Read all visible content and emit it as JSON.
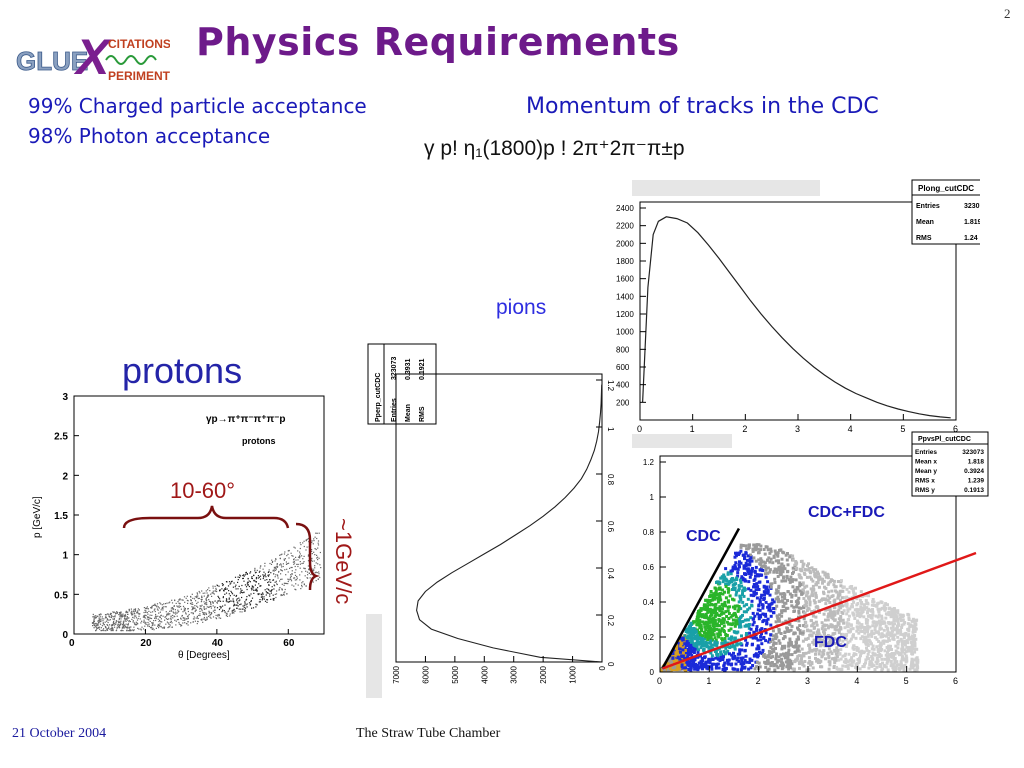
{
  "slide": {
    "title": "Physics Requirements",
    "page_number": "2",
    "logo": {
      "text_top": "CITATIONS",
      "text_left": "GLUE",
      "text_bottom": "PERIMENT",
      "letter": "X"
    },
    "bullets": [
      "99% Charged particle acceptance",
      "98% Photon acceptance"
    ],
    "momentum_heading": "Momentum of tracks in the CDC",
    "reaction": "γ p! η₁(1800)p ! 2π⁺2π⁻π±p",
    "pions_label": "pions",
    "protons_label": "protons",
    "angle_label": "10-60°",
    "momentum_label": "~1GeV/c",
    "footer_date": "21 October 2004",
    "footer_title": "The Straw Tube Chamber"
  },
  "chart_data": [
    {
      "type": "line",
      "name": "Plong_cutCDC",
      "stats": [
        [
          "Entries",
          "323073"
        ],
        [
          "Mean",
          "1.819"
        ],
        [
          "RMS",
          "1.24"
        ]
      ],
      "xlim": [
        0,
        6
      ],
      "ylim": [
        0,
        2400
      ],
      "x_ticks": [
        "0",
        "1",
        "2",
        "3",
        "4",
        "5",
        "6"
      ],
      "y_ticks": [
        "200",
        "400",
        "600",
        "800",
        "1000",
        "1200",
        "1400",
        "1600",
        "1800",
        "2000",
        "2200",
        "2400"
      ],
      "x": [
        0.05,
        0.15,
        0.25,
        0.35,
        0.5,
        0.7,
        0.9,
        1.1,
        1.3,
        1.5,
        1.7,
        1.9,
        2.1,
        2.3,
        2.5,
        2.7,
        2.9,
        3.1,
        3.3,
        3.5,
        3.7,
        3.9,
        4.1,
        4.3,
        4.5,
        4.7,
        4.9,
        5.1,
        5.3,
        5.5,
        5.7,
        5.9
      ],
      "y": [
        200,
        1500,
        2100,
        2250,
        2300,
        2280,
        2230,
        2120,
        1980,
        1830,
        1670,
        1510,
        1350,
        1200,
        1060,
        930,
        810,
        700,
        600,
        510,
        430,
        360,
        300,
        250,
        200,
        160,
        125,
        95,
        70,
        50,
        35,
        25
      ]
    },
    {
      "type": "line",
      "name": "Pperp_cutCDC",
      "stats": [
        [
          "Entries",
          "323073"
        ],
        [
          "Mean",
          "0.3931"
        ],
        [
          "RMS",
          "0.1921"
        ]
      ],
      "orientation": "rotated",
      "p_ticks": [
        "0",
        "0.2",
        "0.4",
        "0.6",
        "0.8",
        "1",
        "1.2"
      ],
      "count_ticks": [
        "7000",
        "6000",
        "5000",
        "4000",
        "3000",
        "2000",
        "1000",
        "0"
      ],
      "p": [
        0.02,
        0.06,
        0.1,
        0.14,
        0.18,
        0.22,
        0.26,
        0.3,
        0.34,
        0.38,
        0.42,
        0.46,
        0.5,
        0.54,
        0.58,
        0.62,
        0.66,
        0.7,
        0.74,
        0.78,
        0.82,
        0.86,
        0.9,
        0.94,
        0.98,
        1.02,
        1.06,
        1.1,
        1.14,
        1.18
      ],
      "counts": [
        2100,
        3700,
        4900,
        5800,
        6200,
        6300,
        6250,
        6000,
        5600,
        5100,
        4550,
        4000,
        3450,
        2950,
        2450,
        2000,
        1600,
        1250,
        950,
        700,
        520,
        380,
        260,
        180,
        120,
        80,
        50,
        30,
        20,
        10
      ]
    },
    {
      "type": "scatter",
      "name": "protons",
      "title": "γp→π⁺π⁻π⁺π⁻p",
      "subtitle": "protons",
      "xlabel": "θ [Degrees]",
      "ylabel": "p [GeV/c]",
      "xlim": [
        0,
        70
      ],
      "ylim": [
        0,
        3
      ],
      "x_ticks": [
        "0",
        "20",
        "40",
        "60"
      ],
      "y_ticks": [
        "0",
        "0.5",
        "1",
        "1.5",
        "2",
        "2.5",
        "3"
      ]
    },
    {
      "type": "heatmap",
      "name": "PpvsPl_cutCDC",
      "stats": [
        [
          "Entries",
          "323073"
        ],
        [
          "Mean x",
          "1.818"
        ],
        [
          "Mean y",
          "0.3924"
        ],
        [
          "RMS x",
          "1.239"
        ],
        [
          "RMS y",
          "0.1913"
        ]
      ],
      "xlim": [
        0,
        6
      ],
      "ylim": [
        0,
        1.2
      ],
      "x_ticks": [
        "0",
        "1",
        "2",
        "3",
        "4",
        "5",
        "6"
      ],
      "y_ticks": [
        "0",
        "0.2",
        "0.4",
        "0.6",
        "0.8",
        "1",
        "1.2"
      ],
      "labels": {
        "cdc": "CDC",
        "cdc_fdc": "CDC+FDC",
        "fdc": "FDC"
      }
    }
  ]
}
